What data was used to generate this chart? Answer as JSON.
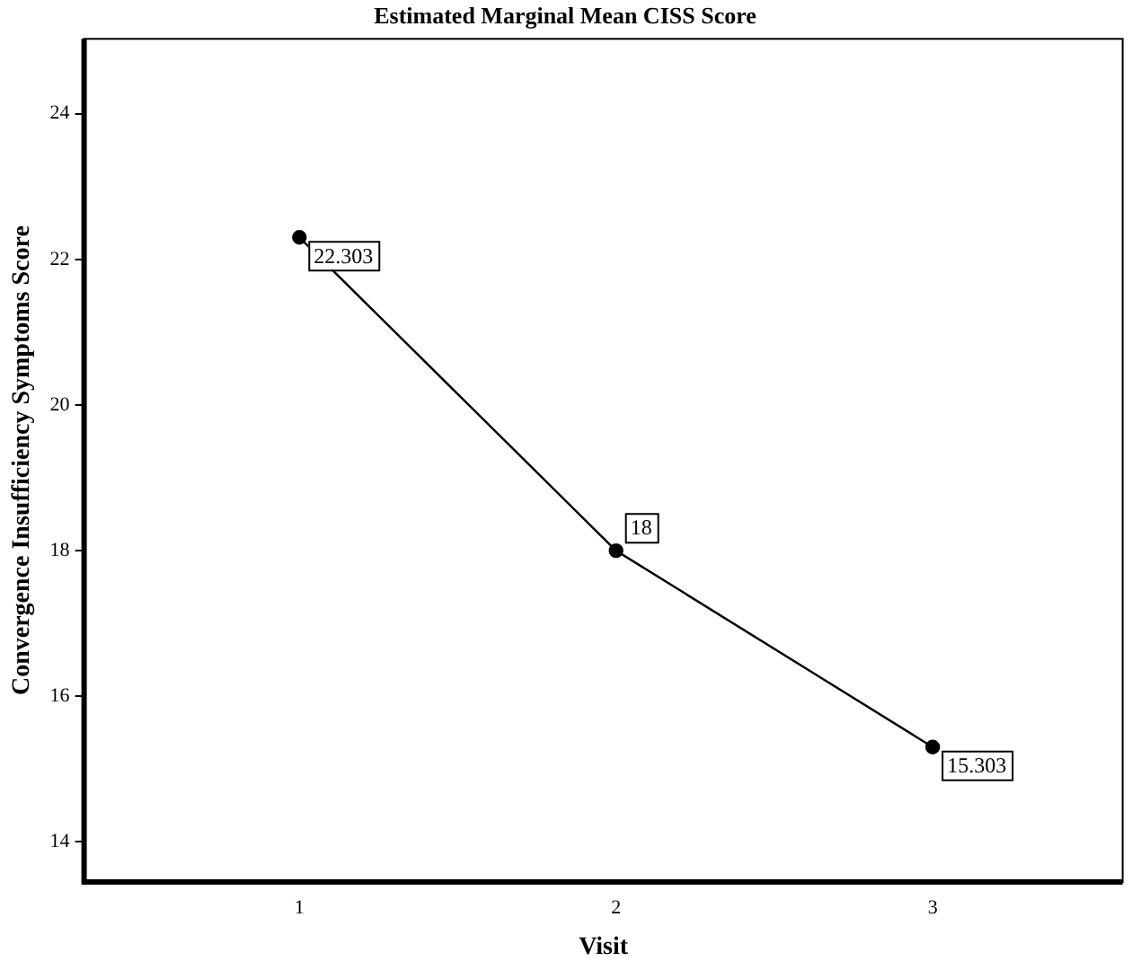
{
  "chart_data": {
    "type": "line",
    "title": "Estimated Marginal Mean CISS Score",
    "xlabel": "Visit",
    "ylabel": "Convergence Insufficiency Symptoms Score",
    "x": [
      1,
      2,
      3
    ],
    "series": [
      {
        "color": "#000000",
        "values": [
          22.303,
          18,
          15.303
        ]
      }
    ],
    "xlim": [
      0.32,
      3.6
    ],
    "xticks": [
      1,
      2,
      3
    ],
    "ylim": [
      13.45,
      25.03
    ],
    "yticks": [
      14,
      16,
      18,
      20,
      22,
      24
    ],
    "data_labels": true,
    "marker": "circle",
    "line_style": "solid",
    "grid": false,
    "legend": false
  }
}
